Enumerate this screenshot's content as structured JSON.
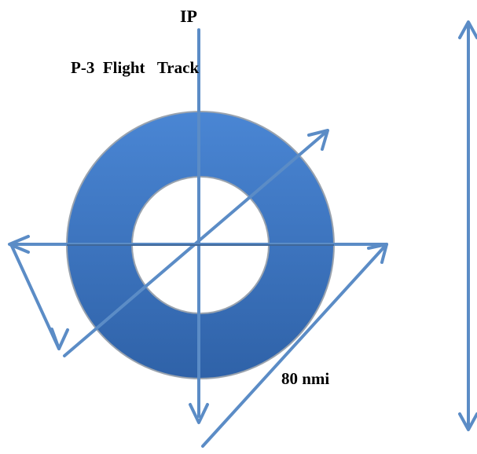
{
  "labels": {
    "ip": "IP",
    "title": "P-3  Flight   Track",
    "range": "80 nmi"
  },
  "colors": {
    "ring_light": "#4a86d4",
    "ring_dark": "#2f62a8",
    "ring_edge": "#9aa3ae",
    "track": "#5b8cc6",
    "track_dark": "#2d4f7c"
  }
}
